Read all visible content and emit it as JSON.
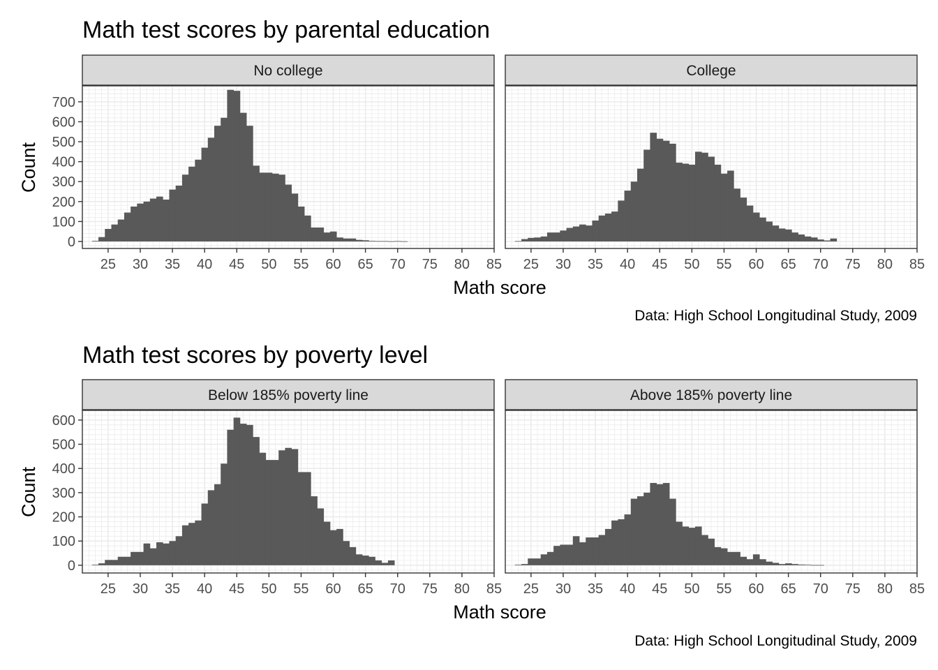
{
  "chart_data": [
    {
      "type": "bar",
      "title": "Math test scores by parental education",
      "xlabel": "Math score",
      "ylabel": "Count",
      "caption": "Data: High School Longitudinal Study, 2009",
      "xlim": [
        21,
        85
      ],
      "ylim": [
        -35,
        780
      ],
      "x_ticks": [
        25,
        30,
        35,
        40,
        45,
        50,
        55,
        60,
        65,
        70,
        75,
        80,
        85
      ],
      "y_ticks": [
        0,
        100,
        200,
        300,
        400,
        500,
        600,
        700
      ],
      "bin_width": 1,
      "bins_start": 23,
      "bins_note": "values are bin heights for consecutive 1-point bins",
      "panels": [
        {
          "label": "No college",
          "values": [
            3,
            22,
            63,
            85,
            110,
            145,
            175,
            190,
            200,
            215,
            225,
            210,
            260,
            280,
            335,
            375,
            410,
            470,
            520,
            580,
            620,
            760,
            755,
            645,
            580,
            380,
            345,
            345,
            340,
            335,
            285,
            240,
            175,
            130,
            70,
            70,
            45,
            50,
            20,
            15,
            15,
            8,
            6,
            3,
            2,
            2,
            1,
            2,
            1
          ]
        },
        {
          "label": "College",
          "values": [
            2,
            12,
            18,
            20,
            25,
            45,
            45,
            55,
            68,
            75,
            85,
            80,
            105,
            130,
            140,
            150,
            205,
            255,
            300,
            365,
            460,
            545,
            515,
            505,
            490,
            395,
            390,
            385,
            450,
            445,
            425,
            385,
            340,
            355,
            265,
            220,
            180,
            145,
            120,
            100,
            80,
            65,
            60,
            45,
            35,
            25,
            20,
            10,
            5,
            15
          ]
        }
      ]
    },
    {
      "type": "bar",
      "title": "Math test scores by poverty level",
      "xlabel": "Math score",
      "ylabel": "Count",
      "caption": "Data: High School Longitudinal Study, 2009",
      "xlim": [
        21,
        85
      ],
      "ylim": [
        -32,
        640
      ],
      "x_ticks": [
        25,
        30,
        35,
        40,
        45,
        50,
        55,
        60,
        65,
        70,
        75,
        80,
        85
      ],
      "y_ticks": [
        0,
        100,
        200,
        300,
        400,
        500,
        600
      ],
      "bin_width": 1,
      "bins_start": 23,
      "bins_note": "values are bin heights for consecutive 1-point bins",
      "panels": [
        {
          "label": "Below 185% poverty line",
          "values": [
            2,
            8,
            22,
            22,
            35,
            35,
            55,
            55,
            90,
            70,
            95,
            90,
            100,
            120,
            165,
            175,
            185,
            255,
            310,
            335,
            420,
            560,
            610,
            585,
            580,
            530,
            465,
            435,
            435,
            475,
            485,
            480,
            385,
            385,
            285,
            235,
            180,
            145,
            150,
            100,
            75,
            45,
            40,
            35,
            20,
            10,
            20
          ]
        },
        {
          "label": "Above 185% poverty line",
          "values": [
            2,
            5,
            28,
            28,
            45,
            55,
            80,
            85,
            85,
            120,
            95,
            115,
            115,
            125,
            150,
            185,
            190,
            210,
            275,
            285,
            300,
            340,
            335,
            340,
            275,
            180,
            160,
            155,
            160,
            125,
            110,
            75,
            70,
            55,
            55,
            35,
            25,
            45,
            25,
            15,
            10,
            5,
            8,
            5,
            3,
            2,
            1,
            1
          ]
        }
      ]
    }
  ]
}
